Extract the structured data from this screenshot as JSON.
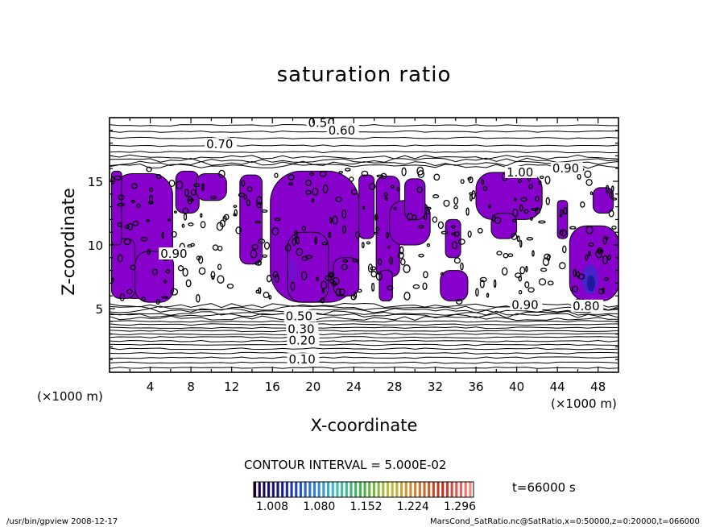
{
  "chart_data": {
    "type": "heatmap",
    "title": "saturation ratio",
    "xlabel": "X-coordinate",
    "ylabel": "Z-coordinate",
    "x_unit": "(×1000 m)",
    "y_unit": "(×1000 m)",
    "xlim": [
      0,
      50
    ],
    "ylim": [
      0,
      20
    ],
    "x_ticks": [
      4,
      8,
      12,
      16,
      20,
      24,
      28,
      32,
      36,
      40,
      44,
      48
    ],
    "y_ticks": [
      5,
      10,
      15
    ],
    "contour_labels": [
      {
        "text": "0.50",
        "x": 19.5,
        "z": 19.6
      },
      {
        "text": "0.60",
        "x": 21.5,
        "z": 19.0
      },
      {
        "text": "0.70",
        "x": 9.5,
        "z": 17.9
      },
      {
        "text": "1.00",
        "x": 39.0,
        "z": 15.7
      },
      {
        "text": "0.90",
        "x": 43.5,
        "z": 16.0
      },
      {
        "text": "0.90",
        "x": 5.0,
        "z": 9.3
      },
      {
        "text": "0.90",
        "x": 39.5,
        "z": 5.3
      },
      {
        "text": "0.80",
        "x": 45.5,
        "z": 5.2
      },
      {
        "text": "0.50",
        "x": 17.3,
        "z": 4.4
      },
      {
        "text": "0.30",
        "x": 17.5,
        "z": 3.4
      },
      {
        "text": "0.20",
        "x": 17.6,
        "z": 2.5
      },
      {
        "text": "0.10",
        "x": 17.6,
        "z": 1.0
      }
    ],
    "colorbar": {
      "ticks": [
        "1.008",
        "1.080",
        "1.152",
        "1.224",
        "1.296"
      ],
      "colors": [
        "#1a0033",
        "#1a1a99",
        "#2a6ee0",
        "#40c0c0",
        "#40b040",
        "#c0c040",
        "#d08030",
        "#c03020",
        "#ff8080"
      ]
    },
    "supersaturated_color": "#8800cc"
  },
  "contour_interval": "CONTOUR INTERVAL = 5.000E-02",
  "time_label": "t=66000 s",
  "footer_left": "/usr/bin/gpview   2008-12-17",
  "footer_right": "MarsCond_SatRatio.nc@SatRatio,x=0:50000,z=0:20000,t=066000"
}
